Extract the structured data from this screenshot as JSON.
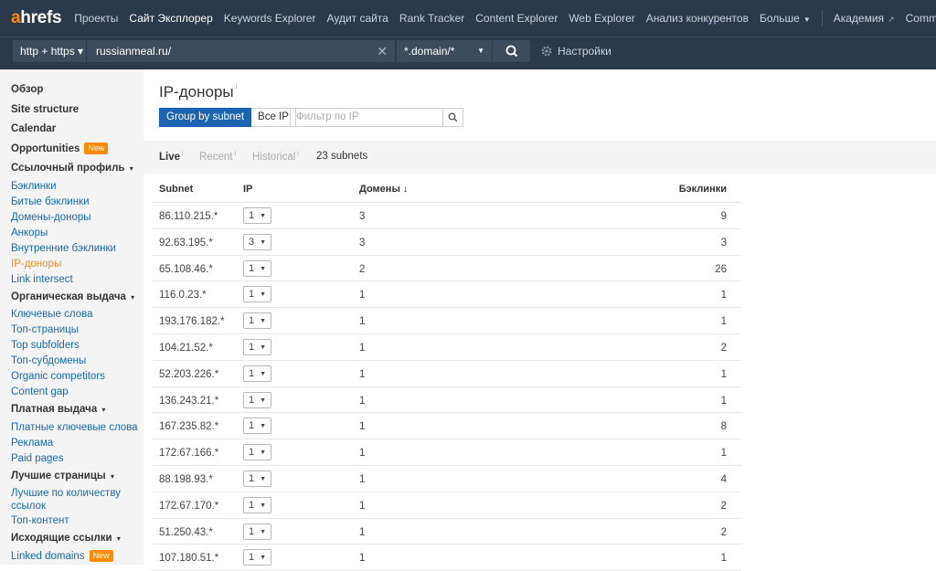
{
  "logo": {
    "a": "a",
    "rest": "hrefs"
  },
  "topnav": {
    "items": [
      {
        "label": "Проекты"
      },
      {
        "label": "Сайт Эксплорер"
      },
      {
        "label": "Keywords Explorer"
      },
      {
        "label": "Аудит сайта"
      },
      {
        "label": "Rank Tracker"
      },
      {
        "label": "Content Explorer"
      },
      {
        "label": "Web Explorer"
      },
      {
        "label": "Анализ конкурентов"
      },
      {
        "label": "Больше"
      }
    ],
    "more_caret": "▼",
    "external": [
      {
        "label": "Академия"
      },
      {
        "label": "Community"
      }
    ],
    "ext_icon": "↗"
  },
  "subbar": {
    "protocol": "http + https ▾",
    "url": "russianmeal.ru/",
    "clear": "✕",
    "mode": "*.domain/*",
    "mode_caret": "▼",
    "settings": "Настройки"
  },
  "sidebar": {
    "overview": "Обзор",
    "site_structure": "Site structure",
    "calendar": "Calendar",
    "opportunities": "Opportunities",
    "new_badge": "New",
    "groups": [
      {
        "title": "Ссылочный профиль",
        "links": [
          "Бэклинки",
          "Битые бэклинки",
          "Домены-доноры",
          "Анкоры",
          "Внутренние бэклинки",
          "IP-доноры",
          "Link intersect"
        ]
      },
      {
        "title": "Органическая выдача",
        "links": [
          "Ключевые слова",
          "Топ-страницы",
          "Top subfolders",
          "Топ-субдомены",
          "Organic competitors",
          "Content gap"
        ]
      },
      {
        "title": "Платная выдача",
        "links": [
          "Платные ключевые слова",
          "Реклама",
          "Paid pages"
        ]
      },
      {
        "title": "Лучшие страницы",
        "links": [
          "Лучшие по количеству ссылок",
          "Топ-контент"
        ]
      },
      {
        "title": "Исходящие ссылки",
        "links": [
          "Linked domains"
        ]
      }
    ],
    "caret": "▾"
  },
  "main": {
    "title": "IP-доноры",
    "title_info": "i",
    "btn_group_subnet": "Group by subnet",
    "btn_all_ip": "Все IP",
    "filter_placeholder": "Фильтр по IP",
    "tabs": {
      "live": "Live",
      "recent": "Recent",
      "historical": "Historical",
      "info": "i"
    },
    "subnet_count": "23 subnets"
  },
  "table": {
    "headers": {
      "subnet": "Subnet",
      "ip": "IP",
      "domains": "Домены ↓",
      "backlinks": "Бэклинки"
    },
    "ip_caret": "▼",
    "rows": [
      {
        "subnet": "86.110.215.*",
        "ip": "1",
        "domains": "3",
        "backlinks": "9"
      },
      {
        "subnet": "92.63.195.*",
        "ip": "3",
        "domains": "3",
        "backlinks": "3"
      },
      {
        "subnet": "65.108.46.*",
        "ip": "1",
        "domains": "2",
        "backlinks": "26"
      },
      {
        "subnet": "116.0.23.*",
        "ip": "1",
        "domains": "1",
        "backlinks": "1"
      },
      {
        "subnet": "193.176.182.*",
        "ip": "1",
        "domains": "1",
        "backlinks": "1"
      },
      {
        "subnet": "104.21.52.*",
        "ip": "1",
        "domains": "1",
        "backlinks": "2"
      },
      {
        "subnet": "52.203.226.*",
        "ip": "1",
        "domains": "1",
        "backlinks": "1"
      },
      {
        "subnet": "136.243.21.*",
        "ip": "1",
        "domains": "1",
        "backlinks": "1"
      },
      {
        "subnet": "167.235.82.*",
        "ip": "1",
        "domains": "1",
        "backlinks": "8"
      },
      {
        "subnet": "172.67.166.*",
        "ip": "1",
        "domains": "1",
        "backlinks": "1"
      },
      {
        "subnet": "88.198.93.*",
        "ip": "1",
        "domains": "1",
        "backlinks": "4"
      },
      {
        "subnet": "172.67.170.*",
        "ip": "1",
        "domains": "1",
        "backlinks": "2"
      },
      {
        "subnet": "51.250.43.*",
        "ip": "1",
        "domains": "1",
        "backlinks": "2"
      },
      {
        "subnet": "107.180.51.*",
        "ip": "1",
        "domains": "1",
        "backlinks": "1"
      }
    ]
  }
}
